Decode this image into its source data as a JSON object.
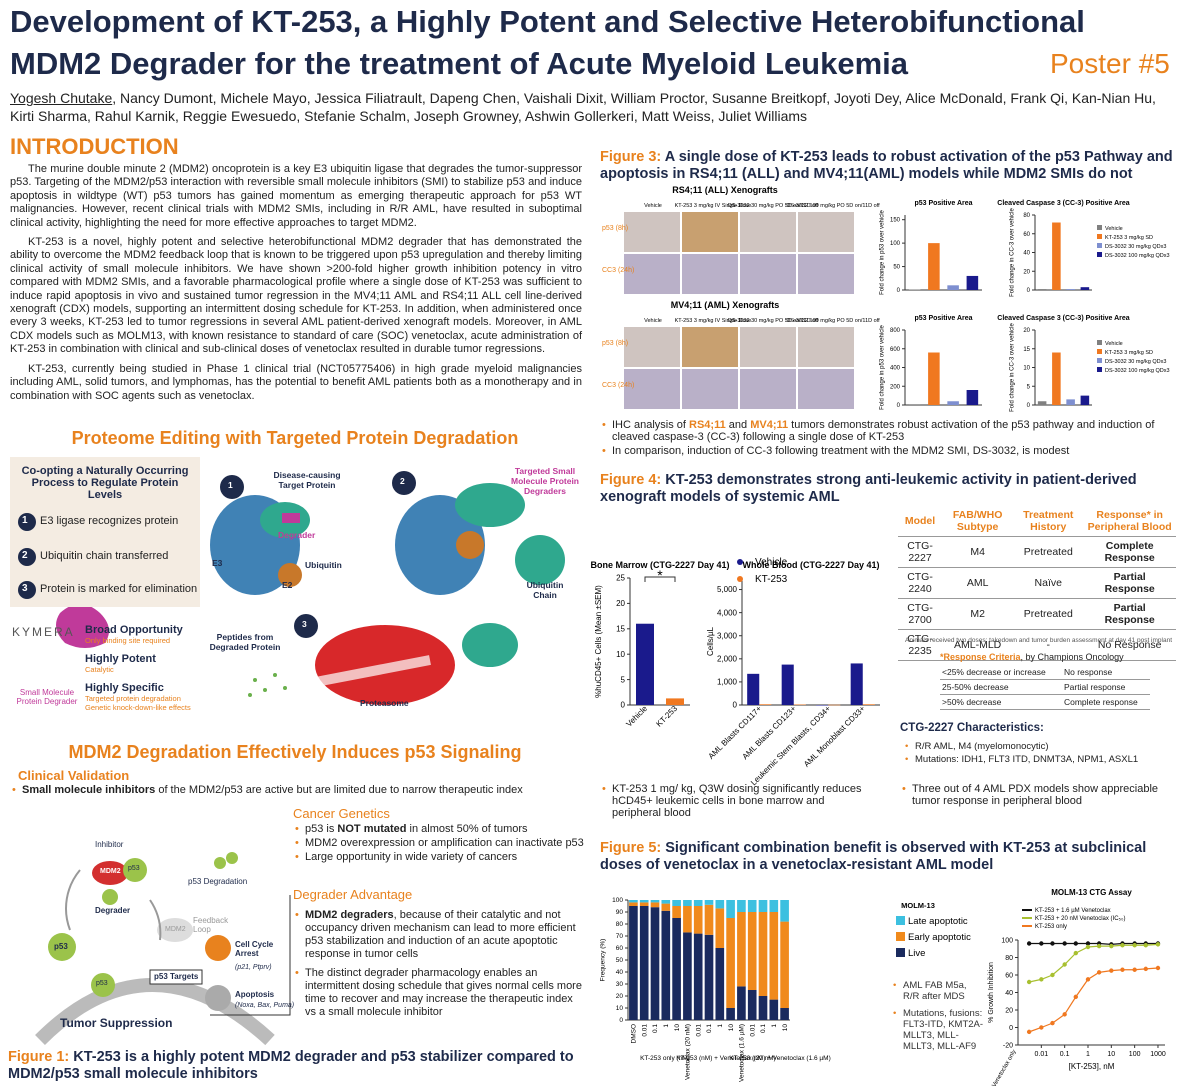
{
  "header": {
    "title_line1": "Development of KT-253, a Highly Potent and Selective Heterobifunctional",
    "title_line2": "MDM2 Degrader for the treatment of Acute Myeloid Leukemia",
    "poster": "Poster #5",
    "first_author": "Yogesh Chutake",
    "authors": ", Nancy Dumont, Michele Mayo, Jessica Filiatrault, Dapeng Chen, Vaishali Dixit, William Proctor, Susanne Breitkopf, Joyoti Dey, Alice McDonald, Frank Qi, Kan-Nian Hu, Kirti Sharma, Rahul Karnik, Reggie Ewesuedo, Stefanie Schalm, Joseph Growney, Ashwin Gollerkeri, Matt Weiss, Juliet Williams"
  },
  "introduction": {
    "heading": "INTRODUCTION",
    "paragraphs": [
      "The murine double minute 2 (MDM2) oncoprotein is a key E3 ubiquitin ligase that degrades the tumor-suppressor p53. Targeting of the MDM2/p53 interaction with reversible small molecule inhibitors (SMI) to stabilize p53 and induce apoptosis in wildtype (WT) p53 tumors has gained momentum as emerging therapeutic approach for p53 WT malignancies. However, recent clinical trials with MDM2 SMIs, including in R/R AML, have resulted in suboptimal clinical activity, highlighting the need for more effective approaches to target MDM2.",
      "KT-253 is a novel, highly potent and selective heterobifunctional MDM2 degrader that has demonstrated the ability to overcome the MDM2 feedback loop that is known to be triggered upon p53 upregulation and thereby limiting clinical activity of small molecule inhibitors. We have shown >200-fold higher growth inhibition potency in vitro compared with MDM2 SMIs, and a favorable pharmacological profile where a single dose of KT-253 was sufficient to induce rapid apoptosis in vivo and sustained tumor regression in the MV4;11 AML and RS4;11 ALL cell line-derived xenograft (CDX) models, supporting an intermittent dosing schedule for KT-253. In addition, when administered once every 3 weeks, KT-253 led to tumor regressions in several AML patient-derived xenograft models. Moreover, in AML CDX models such as MOLM13, with known resistance to standard of care (SOC) venetoclax, acute administration of KT-253 in combination with clinical and sub-clinical doses of venetoclax resulted in durable tumor regressions.",
      "KT-253, currently being studied in Phase 1 clinical trial (NCT05775406) in high grade myeloid malignancies including AML, solid tumors, and lymphomas, has the potential to benefit AML patients both as a monotherapy and in combination with SOC agents such as venetoclax."
    ]
  },
  "proteome": {
    "heading": "Proteome Editing with Targeted Protein Degradation",
    "box_title": "Co-opting a Naturally Occurring Process to Regulate Protein Levels",
    "steps": [
      {
        "number": "1",
        "text": "E3 ligase recognizes protein"
      },
      {
        "number": "2",
        "text": "Ubiquitin chain transferred"
      },
      {
        "number": "3",
        "text": "Protein is marked for elimination"
      }
    ],
    "company": "KYMERA",
    "degrader_label": "Small Molecule Protein Degrader",
    "features": [
      {
        "title": "Broad Opportunity",
        "sub": "Only binding site required"
      },
      {
        "title": "Highly Potent",
        "sub": "Catalytic"
      },
      {
        "title": "Highly Specific",
        "sub": "Targeted protein degradation Genetic knock-down-like effects"
      }
    ],
    "diagram": {
      "n1": "1",
      "n2": "2",
      "n3": "3",
      "target": "Disease-causing Target Protein",
      "degrader": "Degrader",
      "ubiquitin": "Ubiquitin",
      "e3": "E3",
      "e2": "E2",
      "tpd": "Targeted Small Molecule Protein Degraders",
      "chain": "Ubiquitin Chain",
      "peptides": "Peptides from Degraded Protein",
      "proteasome": "Proteasome"
    }
  },
  "mdm2": {
    "heading": "MDM2 Degradation Effectively Induces p53 Signaling",
    "clinical_heading": "Clinical Validation",
    "clinical_bullet": [
      "Small molecule inhibitors",
      " of the MDM2/p53 are active but are limited due to narrow therapeutic index"
    ],
    "genetics_heading": "Cancer Genetics",
    "genetics_first": [
      "p53 is ",
      "NOT mutated",
      " in almost 50% of tumors"
    ],
    "genetics": [
      "MDM2 overexpression or amplification can inactivate p53",
      "Large opportunity in wide variety of cancers"
    ],
    "degrader_heading": "Degrader Advantage",
    "degrader_first": [
      "MDM2 degraders",
      ", because of their catalytic and not occupancy driven mechanism can lead to more efficient p53 stabilization and induction of an acute apoptotic response in tumor cells"
    ],
    "degrader": [
      "The distinct degrader pharmacology enables an intermittent dosing schedule that gives normal cells more time to recover and may increase the therapeutic index vs a small molecule inhibitor"
    ],
    "diagram": {
      "inhibitor": "Inhibitor",
      "mdm2": "MDM2",
      "p53": "p53",
      "p53_degradation": "p53 Degradation",
      "degrader": "Degrader",
      "mdm2_faded": "MDM2",
      "feedback": "Feedback Loop",
      "p53_free": "p53",
      "p53_dna": "p53",
      "targets": "p53 Targets",
      "arrest": "Cell Cycle Arrest",
      "arrest_genes": "(p21, Ptprv)",
      "apoptosis": "Apoptosis",
      "apoptosis_genes": "(Noxa, Bax, Puma)",
      "suppression": "Tumor Suppression"
    }
  },
  "figure1": {
    "label": "Figure 1:",
    "caption": "KT-253 is a highly potent MDM2 degrader and p53 stabilizer compared to MDM2/p53 small molecule inhibitors"
  },
  "figure3": {
    "label": "Figure 3:",
    "title": "A single dose of KT-253 leads to robust activation of the p53 Pathway and apoptosis in RS4;11 (ALL) and MV4;11(AML) models while MDM2 SMIs do not",
    "rows": [
      "RS4;11 (ALL) Xenografts",
      "MV4;11 (AML) Xenografts"
    ],
    "columns": [
      "Vehicle",
      "KT-253 3 mg/kg IV Single Dose",
      "DS-3032 30 mg/kg PO 5D on/11D off",
      "DS-3032 100 mg/kg PO 5D on/11D off"
    ],
    "stains": [
      "p53 (8h)",
      "CC3 (24h)"
    ],
    "legend": [
      {
        "name": "Vehicle",
        "color": "#808080"
      },
      {
        "name": "KT-253 3 mg/kg SD",
        "color": "#f07820"
      },
      {
        "name": "DS-3032 30 mg/kg QDx3",
        "color": "#7e8fd0"
      },
      {
        "name": "DS-3032 100 mg/kg QDx3",
        "color": "#1a1a8c"
      }
    ],
    "charts": [
      {
        "type": "bar",
        "title": "p53 Positive Area",
        "ylabel": "Fold change in p53 over vehicle",
        "values": [
          1,
          100,
          10,
          30
        ],
        "ylim": [
          0,
          160
        ],
        "yticks": [
          0,
          50,
          100,
          150
        ]
      },
      {
        "type": "bar",
        "title": "Cleaved Caspase 3 (CC-3) Positive Area",
        "ylabel": "Fold change in CC-3 over vehicle",
        "values": [
          1,
          72,
          1,
          3
        ],
        "ylim": [
          0,
          80
        ],
        "yticks": [
          0,
          20,
          40,
          60,
          80
        ]
      },
      {
        "type": "bar",
        "title": "p53 Positive Area",
        "ylabel": "Fold change in p53 over vehicle",
        "values": [
          1,
          560,
          40,
          160
        ],
        "ylim": [
          0,
          800
        ],
        "yticks": [
          0,
          200,
          400,
          600,
          800
        ]
      },
      {
        "type": "bar",
        "title": "Cleaved Caspase 3 (CC-3) Positive Area",
        "ylabel": "Fold change in CC-3 over vehicle",
        "values": [
          1,
          14,
          1.5,
          2.5
        ],
        "ylim": [
          0,
          20
        ],
        "yticks": [
          0,
          5,
          10,
          15,
          20
        ]
      }
    ],
    "bullet1": [
      "IHC analysis of ",
      "RS4;11",
      " and ",
      "MV4;11",
      " tumors demonstrates robust activation of the p53 pathway and induction of cleaved caspase-3 (CC-3) following a single dose of KT-253"
    ],
    "bullet2": "In comparison, induction of CC-3 following treatment with the MDM2 SMI, DS-3032, is modest"
  },
  "figure4": {
    "label": "Figure 4:",
    "title": "KT-253 demonstrates strong anti-leukemic activity in patient-derived xenograft models of systemic AML",
    "charts": [
      {
        "type": "bar",
        "title": "Bone Marrow (CTG-2227 Day 41)",
        "ylabel": "%huCD45+ Cells (Mean ±SEM)",
        "categories": [
          "Vehicle",
          "KT-253"
        ],
        "colors": [
          "#1a1a8c",
          "#f07820"
        ],
        "values": [
          16,
          1.3
        ],
        "ylim": [
          0,
          25
        ],
        "yticks": [
          0,
          5,
          10,
          15,
          20,
          25
        ],
        "annotation": "*"
      },
      {
        "type": "bar",
        "title": "Whole Blood (CTG-2227 Day 41)",
        "ylabel": "Cells/µL",
        "categories": [
          "AML Blasts CD117+",
          "AML Blasts CD123+",
          "Leukemic Stem Blasts, CD34+",
          "AML Monoblast CD33+"
        ],
        "series": [
          {
            "name": "Vehicle",
            "color": "#1a1a8c",
            "values": [
              1350,
              1750,
              0,
              1800
            ]
          },
          {
            "name": "KT-253",
            "color": "#f07820",
            "values": [
              30,
              20,
              10,
              30
            ]
          }
        ],
        "ylim": [
          0,
          5500
        ],
        "yticks": [
          0,
          {
            "value": 1000,
            "label": "1,000"
          },
          {
            "value": 2000,
            "label": "2,000"
          },
          {
            "value": 3000,
            "label": "3,000"
          },
          {
            "value": 4000,
            "label": "4,000"
          },
          {
            "value": 5000,
            "label": "5,000"
          }
        ]
      }
    ],
    "table": {
      "header": [
        "Model",
        "FAB/WHO Subtype",
        "Treatment History",
        "Response* in Peripheral Blood"
      ],
      "rows": [
        [
          "CTG-2227",
          "M4",
          "Pretreated",
          "Complete Response"
        ],
        [
          "CTG-2240",
          "AML",
          "Naïve",
          "Partial Response"
        ],
        [
          "CTG-2700",
          "M2",
          "Pretreated",
          "Partial Response"
        ],
        [
          "CTG-2235",
          "AML-MLD",
          "-",
          "No Response"
        ]
      ],
      "footnote": "Animals received two doses; takedown and tumor burden assessment at day 41 post implant"
    },
    "criteria": {
      "title_parts": [
        "*Response Criteria",
        ", by Champions Oncology"
      ],
      "rows": [
        [
          "<25% decrease or increase",
          "No response"
        ],
        [
          "25-50% decrease",
          "Partial response"
        ],
        [
          ">50% decrease",
          "Complete response"
        ]
      ]
    },
    "characteristics": {
      "title": "CTG-2227 Characteristics:",
      "items": [
        "R/R AML, M4 (myelomonocytic)",
        "Mutations: IDH1, FLT3 ITD, DNMT3A, NPM1, ASXL1"
      ]
    },
    "bullet_left": "KT-253 1 mg/ kg, Q3W dosing significantly reduces hCD45+ leukemic cells in bone marrow and peripheral blood",
    "bullet_right": "Three out of 4 AML PDX models show appreciable tumor response in peripheral blood"
  },
  "figure5": {
    "label": "Figure 5:",
    "title": "Significant combination benefit is observed with KT-253 at subclinical doses of venetoclax in a venetoclax-resistant AML model",
    "charts": [
      {
        "type": "bar",
        "stacked": true,
        "title": "MOLM-13",
        "ylabel": "Frequency (%)",
        "categories": [
          "DMSO",
          "0.01",
          "0.1",
          "1",
          "10",
          "Venetoclax (20 nM)",
          "0.01",
          "0.1",
          "1",
          "10",
          "Venetoclax (1.6 µM)",
          "0.01",
          "0.1",
          "1",
          "10"
        ],
        "groups": [
          "KT-253 only (nM)",
          "KT-253 (nM) + Venetoclax (20 nM)",
          "KT-253 (nM) + Venetoclax (1.6 µM)"
        ],
        "series": [
          {
            "name": "Late apoptotic",
            "color": "#3cc0e0",
            "values": [
              2,
              2,
              2,
              3,
              5,
              5,
              5,
              4,
              7,
              15,
              10,
              10,
              10,
              10,
              18
            ]
          },
          {
            "name": "Early apoptotic",
            "color": "#f08a1c",
            "values": [
              3,
              3,
              4,
              6,
              10,
              22,
              23,
              25,
              33,
              75,
              62,
              65,
              70,
              73,
              72
            ]
          },
          {
            "name": "Live",
            "color": "#1a2a5e",
            "values": [
              95,
              95,
              94,
              91,
              85,
              73,
              72,
              71,
              60,
              10,
              28,
              25,
              20,
              17,
              10
            ]
          }
        ],
        "ylim": [
          0,
          100
        ],
        "yticks": [
          0,
          10,
          20,
          30,
          40,
          50,
          60,
          70,
          80,
          90,
          100
        ]
      },
      {
        "type": "line",
        "title": "MOLM-13 CTG Assay",
        "ylabel": "% Growth Inhibition",
        "xlabel": "[KT-253], nM",
        "xlog": true,
        "x": [
          0.003,
          0.01,
          0.03,
          0.1,
          0.3,
          1,
          3,
          10,
          30,
          100,
          300,
          1000
        ],
        "series": [
          {
            "name": "KT-253 + 1.6 µM Venetoclax",
            "color": "#111111",
            "values": [
              96,
              96,
              96,
              96,
              96,
              96,
              96,
              95,
              96,
              96,
              96,
              96
            ]
          },
          {
            "name": "KT-253 + 20 nM Venetoclax (IC₅₀)",
            "color": "#a8c030",
            "values": [
              52,
              55,
              60,
              72,
              85,
              92,
              93,
              93,
              94,
              94,
              94,
              95
            ]
          },
          {
            "name": "KT-253 only",
            "color": "#f07820",
            "values": [
              -5,
              0,
              5,
              15,
              35,
              55,
              63,
              65,
              66,
              66,
              67,
              68
            ]
          }
        ],
        "xlim": [
          0.001,
          2000
        ],
        "xticks": [
          0.01,
          0.1,
          1,
          10,
          100,
          1000
        ],
        "ylim": [
          -20,
          100
        ],
        "yticks": [
          -20,
          0,
          20,
          40,
          60,
          80,
          100
        ],
        "extra_label": "Venetoclax only"
      }
    ],
    "notes": [
      "AML FAB M5a, R/R after MDS",
      "Mutations, fusions: FLT3-ITD, KMT2A-MLLT3, MLL-MLLT3, MLL-AF9"
    ]
  }
}
